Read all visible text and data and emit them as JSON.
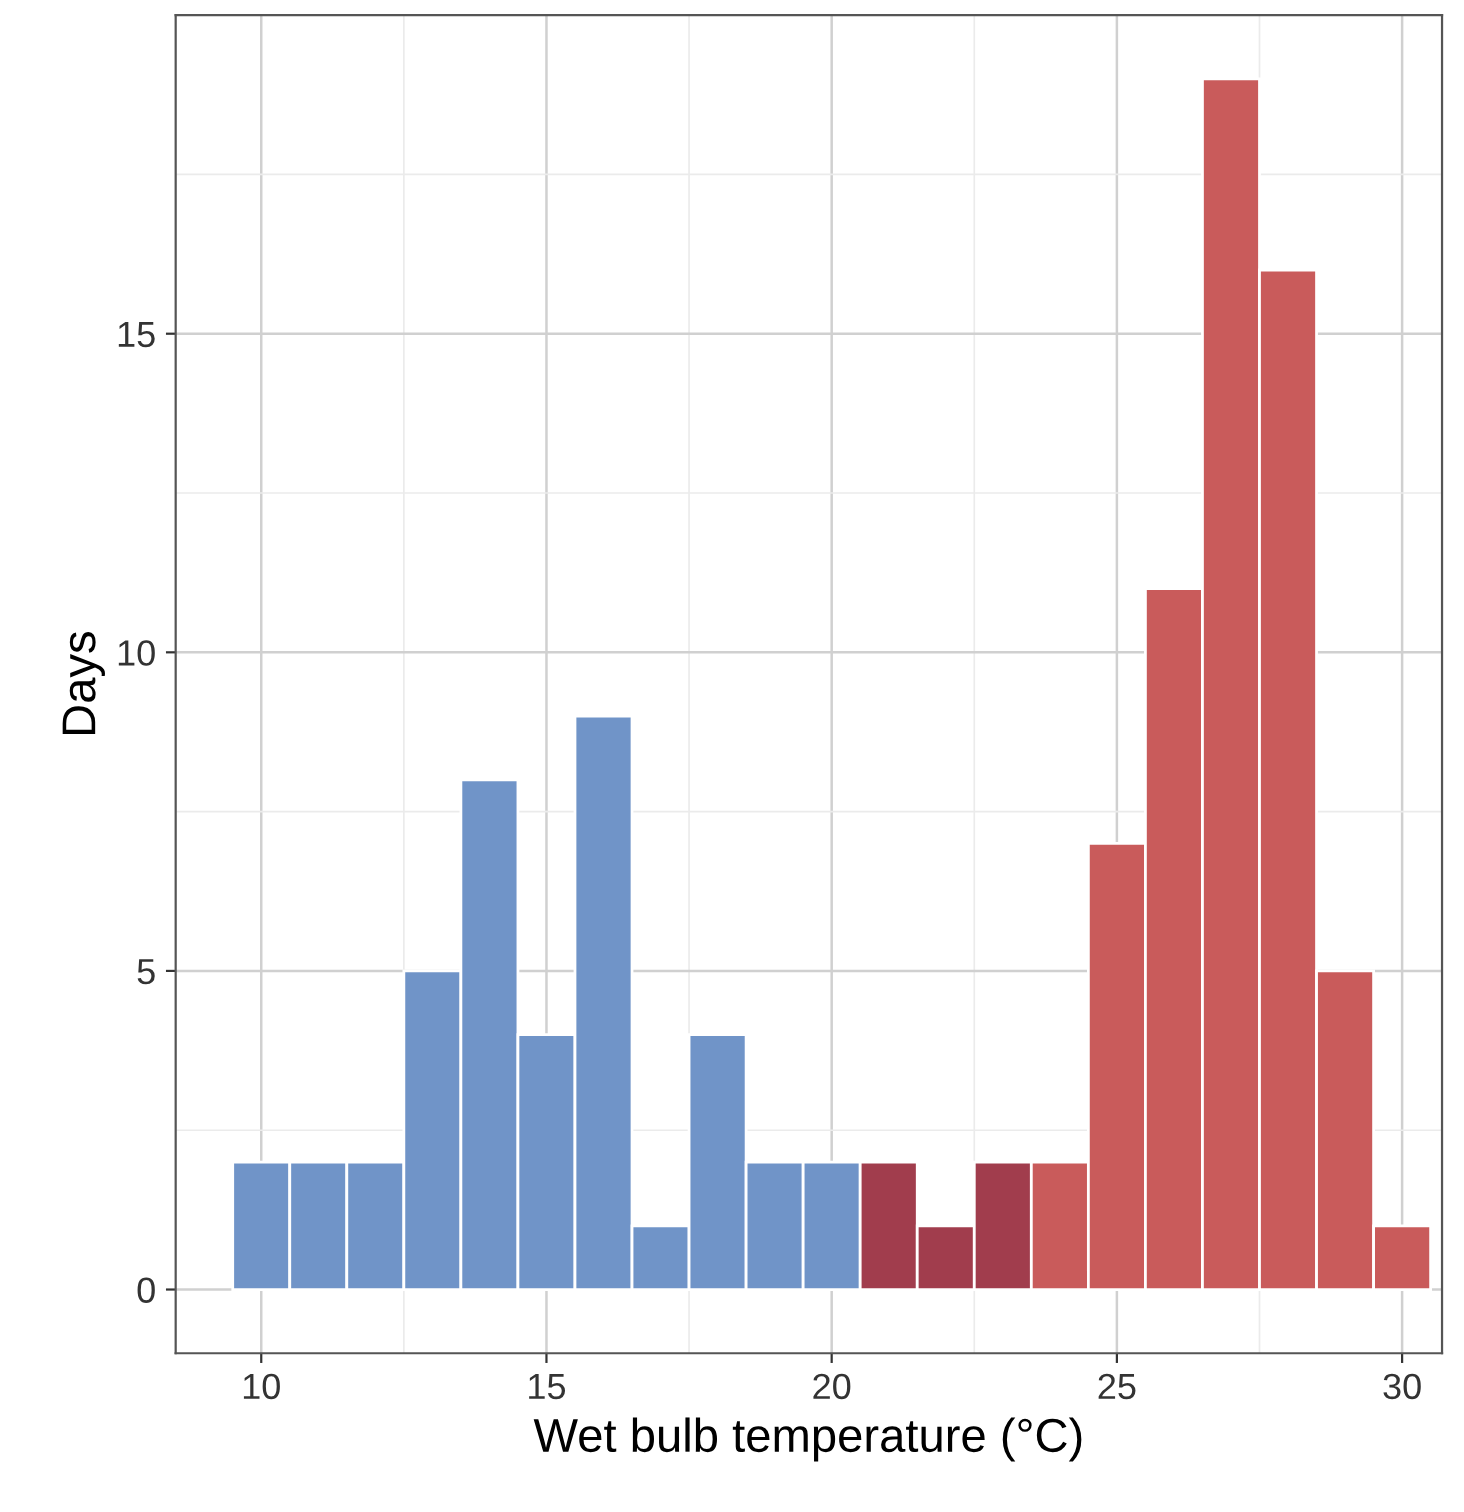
{
  "chart_data": {
    "type": "histogram",
    "xlabel": "Wet bulb temperature (°C)",
    "ylabel": "Days",
    "bins": [
      9.5,
      10.5,
      11.5,
      12.5,
      13.5,
      14.5,
      15.5,
      16.5,
      17.5,
      18.5,
      19.5,
      20.5,
      21.5,
      22.5,
      23.5,
      24.5,
      25.5,
      26.5,
      27.5,
      28.5,
      29.5,
      30.5
    ],
    "values": [
      2,
      2,
      2,
      5,
      8,
      4,
      9,
      1,
      4,
      2,
      2,
      2,
      1,
      2,
      2,
      7,
      11,
      19,
      16,
      5,
      1
    ],
    "colors": [
      "#7094c8",
      "#7094c8",
      "#7094c8",
      "#7094c8",
      "#7094c8",
      "#7094c8",
      "#7094c8",
      "#7094c8",
      "#7094c8",
      "#7094c8",
      "#7094c8",
      "#a13d4d",
      "#a13d4d",
      "#a13d4d",
      "#c95b5b",
      "#c95b5b",
      "#c95b5b",
      "#c95b5b",
      "#c95b5b",
      "#c95b5b",
      "#c95b5b"
    ],
    "xlim": [
      8.5,
      30.7
    ],
    "ylim": [
      -1,
      20
    ],
    "xticks": [
      10,
      15,
      20,
      25,
      30
    ],
    "yticks": [
      0,
      5,
      10,
      15
    ],
    "grid": true
  }
}
